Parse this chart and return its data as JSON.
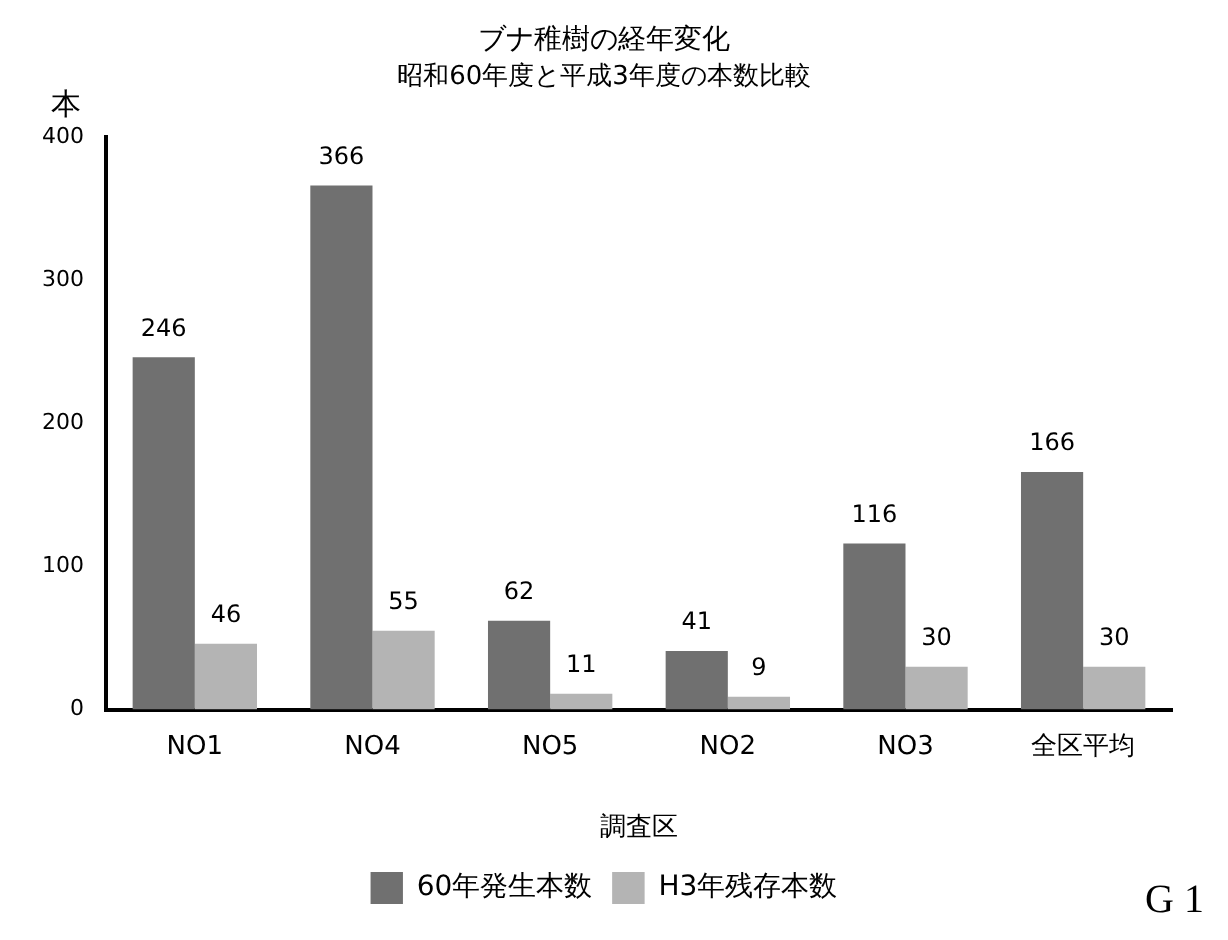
{
  "chart_data": {
    "type": "bar",
    "title": "ブナ稚樹の経年変化",
    "subtitle": "昭和60年度と平成3年度の本数比較",
    "xlabel": "調査区",
    "ylabel": "本",
    "categories": [
      "NO1",
      "NO4",
      "NO5",
      "NO2",
      "NO3",
      "全区平均"
    ],
    "series": [
      {
        "name": "60年発生本数",
        "color": "#707070",
        "values": [
          246,
          366,
          62,
          41,
          116,
          166
        ]
      },
      {
        "name": "H3年残存本数",
        "color": "#b4b4b4",
        "values": [
          46,
          55,
          11,
          9,
          30,
          30
        ]
      }
    ],
    "ylim": [
      0,
      400
    ],
    "yticks": [
      0,
      100,
      200,
      300,
      400
    ],
    "grid": false,
    "legend": "bottom",
    "data_labels": true,
    "annotations": [
      "G 1"
    ]
  }
}
